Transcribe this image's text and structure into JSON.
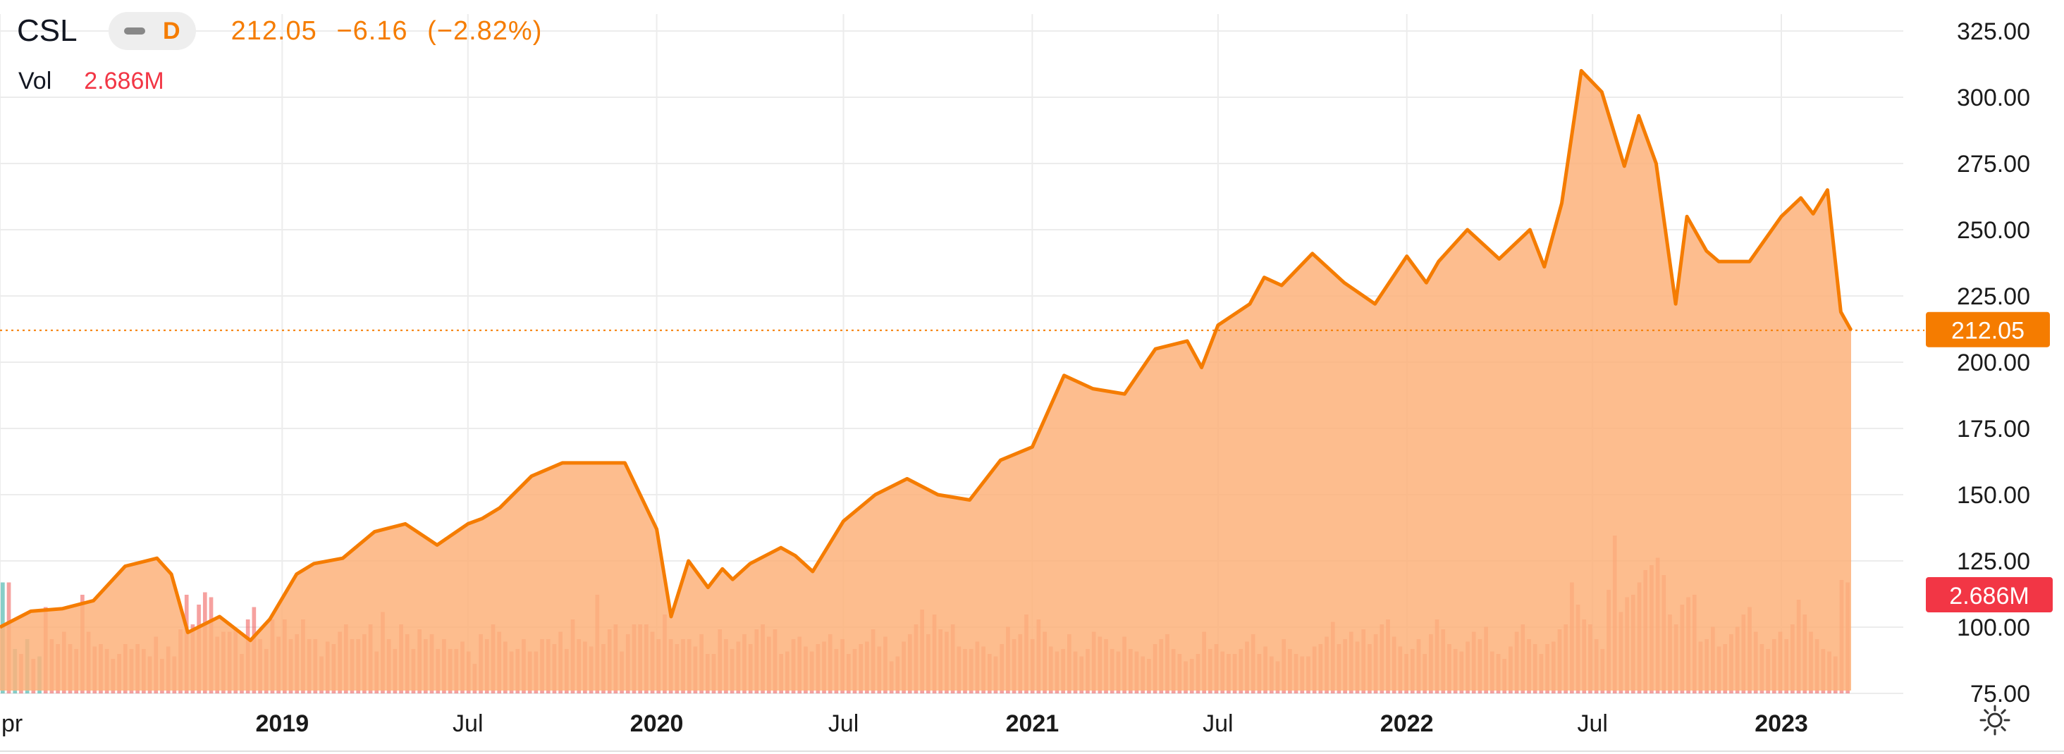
{
  "legend": {
    "symbol": "CSL",
    "resolution": "D",
    "price": "212.05",
    "change": "−6.16",
    "change_pct": "(−2.82%)",
    "volume_label": "Vol",
    "volume_value": "2.686M"
  },
  "badges": {
    "price": "212.05",
    "volume": "2.686M"
  },
  "colors": {
    "line": "#f57c00",
    "area": "#fdb27a",
    "price_badge": "#f57c00",
    "volume_badge": "#f23645",
    "volume_up": "#26a69a",
    "volume_down": "#ef5350"
  },
  "icons": {
    "settings": "sun-gear-icon"
  },
  "chart_data": {
    "type": "area",
    "y_ticks": [
      "325.00",
      "300.00",
      "275.00",
      "250.00",
      "225.00",
      "200.00",
      "175.00",
      "150.00",
      "125.00",
      "100.00",
      "75.00"
    ],
    "x_ticks": [
      {
        "label": "pr",
        "bold": false
      },
      {
        "label": "2019",
        "bold": true
      },
      {
        "label": "Jul",
        "bold": false
      },
      {
        "label": "2020",
        "bold": true
      },
      {
        "label": "Jul",
        "bold": false
      },
      {
        "label": "2021",
        "bold": true
      },
      {
        "label": "Jul",
        "bold": false
      },
      {
        "label": "2022",
        "bold": true
      },
      {
        "label": "Jul",
        "bold": false
      },
      {
        "label": "2023",
        "bold": true
      }
    ],
    "x_tick_dates": [
      "2018-04-01",
      "2019-01-01",
      "2019-07-01",
      "2020-01-01",
      "2020-07-01",
      "2021-01-01",
      "2021-07-01",
      "2022-01-01",
      "2022-07-01",
      "2023-01-01"
    ],
    "ylim": [
      75,
      325
    ],
    "grid": true,
    "last_price": 212.05,
    "price_series": {
      "x": [
        "2018-04-01",
        "2018-05-01",
        "2018-06-01",
        "2018-07-01",
        "2018-08-01",
        "2018-09-01",
        "2018-09-15",
        "2018-10-01",
        "2018-11-01",
        "2018-12-01",
        "2018-12-20",
        "2019-01-15",
        "2019-02-01",
        "2019-03-01",
        "2019-04-01",
        "2019-05-01",
        "2019-06-01",
        "2019-07-01",
        "2019-07-15",
        "2019-08-01",
        "2019-09-01",
        "2019-10-01",
        "2019-11-01",
        "2019-12-01",
        "2020-01-01",
        "2020-01-15",
        "2020-02-01",
        "2020-02-20",
        "2020-03-05",
        "2020-03-15",
        "2020-04-01",
        "2020-05-01",
        "2020-05-15",
        "2020-06-01",
        "2020-07-01",
        "2020-08-01",
        "2020-09-01",
        "2020-10-01",
        "2020-11-01",
        "2020-12-01",
        "2021-01-01",
        "2021-02-01",
        "2021-03-01",
        "2021-04-01",
        "2021-05-01",
        "2021-06-01",
        "2021-06-15",
        "2021-07-01",
        "2021-08-01",
        "2021-08-15",
        "2021-09-01",
        "2021-10-01",
        "2021-11-01",
        "2021-12-01",
        "2022-01-01",
        "2022-01-20",
        "2022-02-01",
        "2022-03-01",
        "2022-04-01",
        "2022-05-01",
        "2022-05-15",
        "2022-06-01",
        "2022-06-20",
        "2022-07-10",
        "2022-08-01",
        "2022-08-15",
        "2022-09-01",
        "2022-09-20",
        "2022-10-01",
        "2022-10-20",
        "2022-11-01",
        "2022-12-01",
        "2023-01-01",
        "2023-01-20",
        "2023-02-01",
        "2023-02-15",
        "2023-02-28",
        "2023-03-10"
      ],
      "y": [
        100,
        106,
        107,
        110,
        123,
        126,
        120,
        98,
        104,
        95,
        103,
        120,
        124,
        126,
        136,
        139,
        131,
        139,
        141,
        145,
        157,
        162,
        162,
        162,
        137,
        104,
        125,
        115,
        122,
        118,
        124,
        130,
        127,
        121,
        140,
        150,
        156,
        150,
        148,
        163,
        168,
        195,
        190,
        188,
        205,
        208,
        198,
        214,
        222,
        232,
        229,
        241,
        230,
        222,
        240,
        230,
        238,
        250,
        239,
        250,
        236,
        260,
        310,
        302,
        274,
        293,
        275,
        222,
        255,
        242,
        238,
        238,
        255,
        262,
        256,
        265,
        219,
        212.05
      ]
    },
    "volume": {
      "values": [
        45,
        45,
        18,
        16,
        22,
        14,
        15,
        35,
        22,
        20,
        25,
        20,
        18,
        40,
        25,
        19,
        20,
        18,
        14,
        16,
        20,
        18,
        20,
        18,
        15,
        23,
        14,
        19,
        15,
        26,
        40,
        28,
        36,
        41,
        39,
        23,
        25,
        25,
        26,
        16,
        30,
        35,
        22,
        18,
        30,
        23,
        30,
        22,
        24,
        30,
        22,
        22,
        15,
        21,
        20,
        25,
        28,
        22,
        22,
        24,
        28,
        17,
        33,
        22,
        18,
        28,
        24,
        18,
        26,
        22,
        24,
        18,
        22,
        18,
        18,
        21,
        17,
        12,
        24,
        22,
        28,
        25,
        21,
        17,
        18,
        22,
        17,
        17,
        22,
        22,
        20,
        25,
        18,
        30,
        22,
        21,
        19,
        40,
        20,
        26,
        28,
        17,
        24,
        28,
        28,
        28,
        25,
        22,
        32,
        22,
        20,
        22,
        22,
        19,
        24,
        16,
        16,
        26,
        22,
        18,
        21,
        24,
        20,
        26,
        28,
        23,
        26,
        16,
        17,
        22,
        23,
        19,
        17,
        20,
        21,
        24,
        18,
        22,
        16,
        18,
        20,
        21,
        26,
        19,
        23,
        13,
        15,
        21,
        24,
        28,
        34,
        24,
        32,
        26,
        25,
        28,
        19,
        18,
        18,
        21,
        19,
        16,
        15,
        20,
        27,
        22,
        24,
        32,
        22,
        30,
        25,
        19,
        17,
        18,
        24,
        17,
        15,
        18,
        25,
        23,
        22,
        18,
        17,
        23,
        18,
        17,
        15,
        14,
        20,
        22,
        24,
        18,
        16,
        13,
        14,
        16,
        25,
        18,
        20,
        17,
        16,
        16,
        18,
        21,
        24,
        16,
        19,
        15,
        13,
        22,
        18,
        16,
        15,
        15,
        19,
        20,
        23,
        29,
        20,
        22,
        25,
        21,
        26,
        20,
        24,
        28,
        30,
        23,
        19,
        16,
        18,
        22,
        16,
        24,
        30,
        26,
        20,
        18,
        17,
        21,
        25,
        22,
        27,
        17,
        16,
        14,
        19,
        25,
        28,
        22,
        20,
        16,
        20,
        21,
        26,
        28,
        45,
        36,
        30,
        28,
        22,
        18,
        42,
        64,
        33,
        39,
        40,
        45,
        50,
        52,
        55,
        48,
        32,
        28,
        36,
        39,
        40,
        21,
        22,
        27,
        19,
        20,
        24,
        27,
        32,
        35,
        25,
        20,
        18,
        22,
        25,
        22,
        28,
        38,
        32,
        25,
        22,
        18,
        17,
        15,
        46,
        45
      ],
      "colors_up_first": 8
    }
  }
}
